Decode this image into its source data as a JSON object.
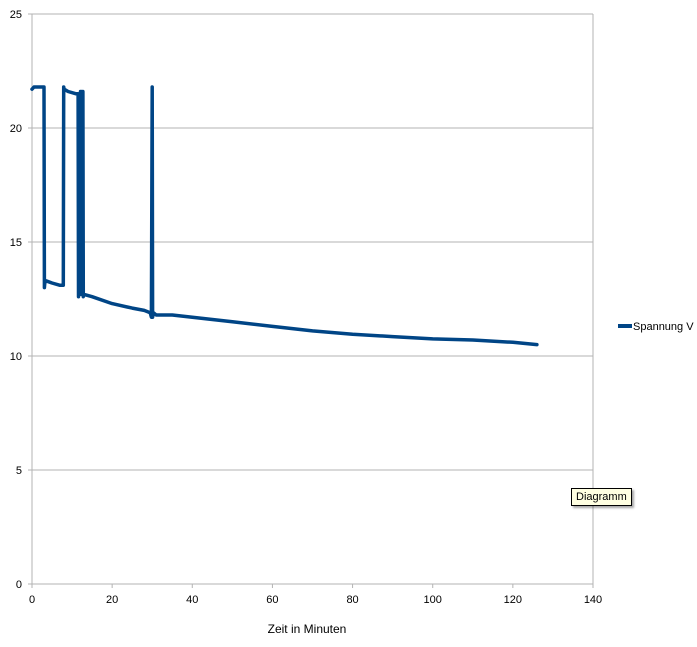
{
  "chart_data": {
    "type": "line",
    "title": "",
    "xlabel": "Zeit in Minuten",
    "ylabel": "",
    "xlim": [
      0,
      140
    ],
    "ylim": [
      0,
      25
    ],
    "x_ticks": [
      0,
      20,
      40,
      60,
      80,
      100,
      120,
      140
    ],
    "y_ticks": [
      0,
      5,
      10,
      15,
      20,
      25
    ],
    "grid": true,
    "legend_position": "right",
    "series": [
      {
        "name": "Spannung V",
        "color": "#004586",
        "x": [
          0,
          0.5,
          1,
          2,
          3,
          3.1,
          3.2,
          3.5,
          5,
          7,
          7.8,
          7.9,
          8,
          9,
          11,
          11.5,
          11.6,
          11.8,
          11.9,
          12.1,
          12.2,
          12.4,
          12.5,
          12.7,
          12.8,
          13,
          15,
          20,
          25,
          28,
          29.5,
          29.8,
          30,
          30.1,
          30.3,
          31,
          35,
          40,
          50,
          60,
          70,
          80,
          90,
          100,
          110,
          120,
          126
        ],
        "y": [
          21.7,
          21.8,
          21.8,
          21.8,
          21.8,
          13.0,
          13.2,
          13.3,
          13.2,
          13.1,
          13.1,
          21.8,
          21.7,
          21.6,
          21.5,
          21.5,
          12.6,
          21.5,
          12.8,
          21.6,
          12.7,
          21.6,
          12.7,
          21.6,
          12.6,
          12.7,
          12.6,
          12.3,
          12.1,
          12.0,
          11.9,
          11.7,
          21.8,
          11.7,
          11.9,
          11.8,
          11.8,
          11.7,
          11.5,
          11.3,
          11.1,
          10.95,
          10.85,
          10.75,
          10.7,
          10.6,
          10.5
        ]
      }
    ]
  },
  "tooltip": {
    "text": "Diagramm"
  }
}
